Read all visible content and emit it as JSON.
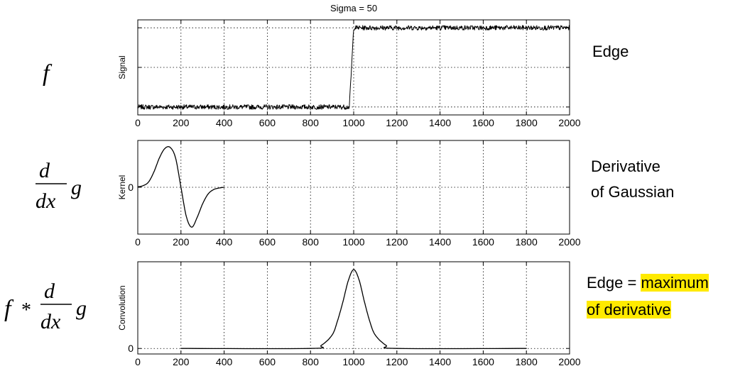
{
  "chart_data": [
    {
      "type": "line",
      "title": "Sigma = 50",
      "ylabel": "Signal",
      "xlim": [
        0,
        2000
      ],
      "xticks": [
        0,
        200,
        400,
        600,
        800,
        1000,
        1200,
        1400,
        1600,
        1800,
        2000
      ],
      "yticks": [],
      "grid": true,
      "series": [
        {
          "x": [
            0,
            980,
            1000,
            2000
          ],
          "y": [
            0,
            0,
            1,
            1
          ],
          "noise": true
        }
      ]
    },
    {
      "type": "line",
      "ylabel": "Kernel",
      "xlim": [
        0,
        2000
      ],
      "xticks": [
        0,
        200,
        400,
        600,
        800,
        1000,
        1200,
        1400,
        1600,
        1800,
        2000
      ],
      "yticks": [
        0
      ],
      "grid": true,
      "series": [
        {
          "x": [
            0,
            25,
            50,
            75,
            100,
            125,
            150,
            175,
            200,
            225,
            250,
            275,
            300,
            325,
            350,
            375,
            400
          ],
          "y": [
            0.01,
            0.04,
            0.13,
            0.38,
            0.72,
            0.95,
            0.98,
            0.72,
            0.0,
            -0.72,
            -0.98,
            -0.74,
            -0.41,
            -0.17,
            -0.06,
            -0.02,
            0.0
          ]
        }
      ]
    },
    {
      "type": "line",
      "ylabel": "Convolution",
      "xlim": [
        0,
        2000
      ],
      "xticks": [
        0,
        200,
        400,
        600,
        800,
        1000,
        1200,
        1400,
        1600,
        1800,
        2000
      ],
      "yticks": [
        0
      ],
      "grid": true,
      "series": [
        {
          "x": [
            200,
            800,
            850,
            900,
            925,
            950,
            975,
            1000,
            1025,
            1050,
            1075,
            1100,
            1150,
            1200,
            1800
          ],
          "y": [
            0,
            0,
            0.04,
            0.17,
            0.35,
            0.59,
            0.86,
            1.0,
            0.87,
            0.59,
            0.34,
            0.17,
            0.04,
            0,
            0
          ]
        }
      ]
    }
  ],
  "captions": {
    "edge": "Edge",
    "derivative_line1": "Derivative",
    "derivative_line2": "of Gaussian",
    "result_prefix": "Edge = ",
    "result_highlight1": "maximum",
    "result_highlight2": "of derivative"
  },
  "formulas": {
    "f": "f",
    "d": "d",
    "dx": "dx",
    "g": "g",
    "star": "*"
  },
  "colors": {
    "highlight": "#ffea00",
    "line": "#000000"
  }
}
